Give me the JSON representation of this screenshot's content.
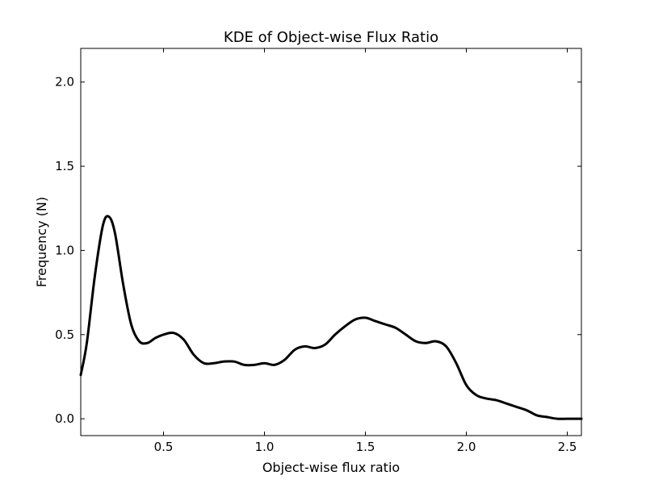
{
  "colors": {
    "background": "#ffffff",
    "axes": "#000000",
    "line": "#000000"
  },
  "chart_data": {
    "type": "line",
    "title": "KDE of Object-wise Flux Ratio",
    "xlabel": "Object-wise flux ratio",
    "ylabel": "Frequency (N)",
    "xlim": [
      0.09,
      2.57
    ],
    "ylim": [
      -0.1,
      2.2
    ],
    "xticks": [
      0.5,
      1.0,
      1.5,
      2.0,
      2.5
    ],
    "xtick_labels": [
      "0.5",
      "1.0",
      "1.5",
      "2.0",
      "2.5"
    ],
    "yticks": [
      0.0,
      0.5,
      1.0,
      1.5,
      2.0
    ],
    "ytick_labels": [
      "0.0",
      "0.5",
      "1.0",
      "1.5",
      "2.0"
    ],
    "grid": false,
    "legend": "none",
    "series": [
      {
        "x": [
          0.09,
          0.12,
          0.16,
          0.2,
          0.23,
          0.26,
          0.3,
          0.34,
          0.38,
          0.42,
          0.46,
          0.5,
          0.55,
          0.6,
          0.65,
          0.7,
          0.75,
          0.8,
          0.85,
          0.9,
          0.95,
          1.0,
          1.05,
          1.1,
          1.15,
          1.2,
          1.25,
          1.3,
          1.35,
          1.4,
          1.45,
          1.5,
          1.55,
          1.6,
          1.65,
          1.7,
          1.75,
          1.8,
          1.85,
          1.9,
          1.95,
          2.0,
          2.05,
          2.1,
          2.15,
          2.2,
          2.25,
          2.3,
          2.35,
          2.4,
          2.45,
          2.5,
          2.57
        ],
        "y": [
          0.26,
          0.45,
          0.85,
          1.15,
          1.2,
          1.1,
          0.8,
          0.56,
          0.46,
          0.45,
          0.48,
          0.5,
          0.51,
          0.47,
          0.38,
          0.33,
          0.33,
          0.34,
          0.34,
          0.32,
          0.32,
          0.33,
          0.32,
          0.35,
          0.41,
          0.43,
          0.42,
          0.44,
          0.5,
          0.55,
          0.59,
          0.6,
          0.58,
          0.56,
          0.54,
          0.5,
          0.46,
          0.45,
          0.46,
          0.43,
          0.33,
          0.2,
          0.14,
          0.12,
          0.11,
          0.09,
          0.07,
          0.05,
          0.02,
          0.01,
          0.0,
          0.0,
          0.0
        ]
      }
    ]
  }
}
